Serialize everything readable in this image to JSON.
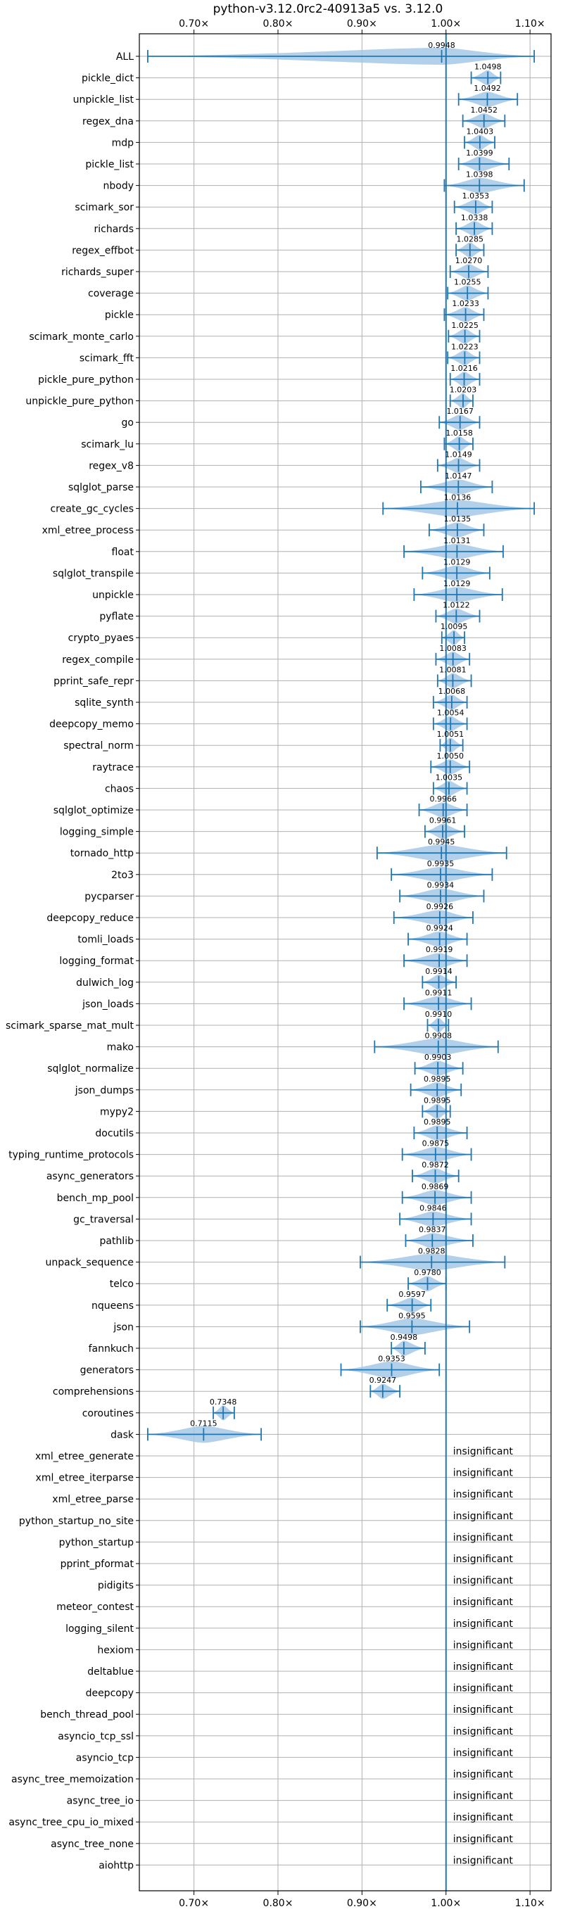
{
  "chart_data": {
    "type": "violin",
    "title": "python-v3.12.0rc2-40913a5 vs. 3.12.0",
    "xlim": [
      0.635,
      1.125
    ],
    "xticks": [
      0.7,
      0.8,
      0.9,
      1.0,
      1.1
    ],
    "xtick_labels": [
      "0.70×",
      "0.80×",
      "0.90×",
      "1.00×",
      "1.10×"
    ],
    "reference_line": 1.0,
    "grid": true,
    "colors": {
      "accent": "#1f77b4",
      "violin_fill": "#a6c8e6",
      "grid": "#b0b0b0"
    },
    "insignificant_label": "insignificant",
    "rows": [
      {
        "name": "ALL",
        "value": 0.9948,
        "label": "0.9948",
        "lo": 0.645,
        "hi": 1.105,
        "width": 1.0
      },
      {
        "name": "pickle_dict",
        "value": 1.0498,
        "label": "1.0498",
        "lo": 1.03,
        "hi": 1.065,
        "width": 0.9
      },
      {
        "name": "unpickle_list",
        "value": 1.0492,
        "label": "1.0492",
        "lo": 1.015,
        "hi": 1.085,
        "width": 0.9
      },
      {
        "name": "regex_dna",
        "value": 1.0452,
        "label": "1.0452",
        "lo": 1.02,
        "hi": 1.07,
        "width": 0.9
      },
      {
        "name": "mdp",
        "value": 1.0403,
        "label": "1.0403",
        "lo": 1.022,
        "hi": 1.058,
        "width": 0.9
      },
      {
        "name": "pickle_list",
        "value": 1.0399,
        "label": "1.0399",
        "lo": 1.015,
        "hi": 1.075,
        "width": 0.9
      },
      {
        "name": "nbody",
        "value": 1.0398,
        "label": "1.0398",
        "lo": 0.998,
        "hi": 1.093,
        "width": 0.9
      },
      {
        "name": "scimark_sor",
        "value": 1.0353,
        "label": "1.0353",
        "lo": 1.01,
        "hi": 1.055,
        "width": 0.9
      },
      {
        "name": "richards",
        "value": 1.0338,
        "label": "1.0338",
        "lo": 1.012,
        "hi": 1.055,
        "width": 0.9
      },
      {
        "name": "regex_effbot",
        "value": 1.0285,
        "label": "1.0285",
        "lo": 1.012,
        "hi": 1.045,
        "width": 0.9
      },
      {
        "name": "richards_super",
        "value": 1.027,
        "label": "1.0270",
        "lo": 1.005,
        "hi": 1.05,
        "width": 0.9
      },
      {
        "name": "coverage",
        "value": 1.0255,
        "label": "1.0255",
        "lo": 1.002,
        "hi": 1.05,
        "width": 0.9
      },
      {
        "name": "pickle",
        "value": 1.0233,
        "label": "1.0233",
        "lo": 0.998,
        "hi": 1.045,
        "width": 0.9
      },
      {
        "name": "scimark_monte_carlo",
        "value": 1.0225,
        "label": "1.0225",
        "lo": 1.003,
        "hi": 1.04,
        "width": 0.9
      },
      {
        "name": "scimark_fft",
        "value": 1.0223,
        "label": "1.0223",
        "lo": 1.002,
        "hi": 1.04,
        "width": 0.9
      },
      {
        "name": "pickle_pure_python",
        "value": 1.0216,
        "label": "1.0216",
        "lo": 1.005,
        "hi": 1.04,
        "width": 0.9
      },
      {
        "name": "unpickle_pure_python",
        "value": 1.0203,
        "label": "1.0203",
        "lo": 1.005,
        "hi": 1.032,
        "width": 0.9
      },
      {
        "name": "go",
        "value": 1.0167,
        "label": "1.0167",
        "lo": 0.992,
        "hi": 1.04,
        "width": 0.9
      },
      {
        "name": "scimark_lu",
        "value": 1.0158,
        "label": "1.0158",
        "lo": 0.998,
        "hi": 1.032,
        "width": 0.9
      },
      {
        "name": "regex_v8",
        "value": 1.0149,
        "label": "1.0149",
        "lo": 0.99,
        "hi": 1.04,
        "width": 0.9
      },
      {
        "name": "sqlglot_parse",
        "value": 1.0147,
        "label": "1.0147",
        "lo": 0.97,
        "hi": 1.055,
        "width": 0.9
      },
      {
        "name": "create_gc_cycles",
        "value": 1.0136,
        "label": "1.0136",
        "lo": 0.925,
        "hi": 1.105,
        "width": 1.0
      },
      {
        "name": "xml_etree_process",
        "value": 1.0135,
        "label": "1.0135",
        "lo": 0.98,
        "hi": 1.045,
        "width": 0.9
      },
      {
        "name": "float",
        "value": 1.0131,
        "label": "1.0131",
        "lo": 0.95,
        "hi": 1.068,
        "width": 0.9
      },
      {
        "name": "sqlglot_transpile",
        "value": 1.0129,
        "label": "1.0129",
        "lo": 0.972,
        "hi": 1.052,
        "width": 0.9
      },
      {
        "name": "unpickle",
        "value": 1.0129,
        "label": "1.0129",
        "lo": 0.962,
        "hi": 1.067,
        "width": 0.9
      },
      {
        "name": "pyflate",
        "value": 1.0122,
        "label": "1.0122",
        "lo": 0.988,
        "hi": 1.04,
        "width": 0.9
      },
      {
        "name": "crypto_pyaes",
        "value": 1.0095,
        "label": "1.0095",
        "lo": 0.995,
        "hi": 1.022,
        "width": 0.9
      },
      {
        "name": "regex_compile",
        "value": 1.0083,
        "label": "1.0083",
        "lo": 0.988,
        "hi": 1.028,
        "width": 0.9
      },
      {
        "name": "pprint_safe_repr",
        "value": 1.0081,
        "label": "1.0081",
        "lo": 0.99,
        "hi": 1.03,
        "width": 0.9
      },
      {
        "name": "sqlite_synth",
        "value": 1.0068,
        "label": "1.0068",
        "lo": 0.985,
        "hi": 1.025,
        "width": 0.9
      },
      {
        "name": "deepcopy_memo",
        "value": 1.0054,
        "label": "1.0054",
        "lo": 0.985,
        "hi": 1.025,
        "width": 0.9
      },
      {
        "name": "spectral_norm",
        "value": 1.0051,
        "label": "1.0051",
        "lo": 0.993,
        "hi": 1.02,
        "width": 0.9
      },
      {
        "name": "raytrace",
        "value": 1.005,
        "label": "1.0050",
        "lo": 0.982,
        "hi": 1.028,
        "width": 0.9
      },
      {
        "name": "chaos",
        "value": 1.0035,
        "label": "1.0035",
        "lo": 0.985,
        "hi": 1.025,
        "width": 0.9
      },
      {
        "name": "sqlglot_optimize",
        "value": 0.9966,
        "label": "0.9966",
        "lo": 0.968,
        "hi": 1.025,
        "width": 0.9
      },
      {
        "name": "logging_simple",
        "value": 0.9961,
        "label": "0.9961",
        "lo": 0.975,
        "hi": 1.022,
        "width": 0.9
      },
      {
        "name": "tornado_http",
        "value": 0.9945,
        "label": "0.9945",
        "lo": 0.918,
        "hi": 1.072,
        "width": 1.0
      },
      {
        "name": "2to3",
        "value": 0.9935,
        "label": "0.9935",
        "lo": 0.935,
        "hi": 1.055,
        "width": 0.9
      },
      {
        "name": "pycparser",
        "value": 0.9934,
        "label": "0.9934",
        "lo": 0.945,
        "hi": 1.045,
        "width": 0.9
      },
      {
        "name": "deepcopy_reduce",
        "value": 0.9926,
        "label": "0.9926",
        "lo": 0.938,
        "hi": 1.032,
        "width": 0.9
      },
      {
        "name": "tomli_loads",
        "value": 0.9924,
        "label": "0.9924",
        "lo": 0.955,
        "hi": 1.025,
        "width": 0.9
      },
      {
        "name": "logging_format",
        "value": 0.9919,
        "label": "0.9919",
        "lo": 0.95,
        "hi": 1.025,
        "width": 0.9
      },
      {
        "name": "dulwich_log",
        "value": 0.9914,
        "label": "0.9914",
        "lo": 0.972,
        "hi": 1.012,
        "width": 0.9
      },
      {
        "name": "json_loads",
        "value": 0.9911,
        "label": "0.9911",
        "lo": 0.95,
        "hi": 1.03,
        "width": 0.9
      },
      {
        "name": "scimark_sparse_mat_mult",
        "value": 0.991,
        "label": "0.9910",
        "lo": 0.978,
        "hi": 1.003,
        "width": 0.9
      },
      {
        "name": "mako",
        "value": 0.9908,
        "label": "0.9908",
        "lo": 0.915,
        "hi": 1.062,
        "width": 1.0
      },
      {
        "name": "sqlglot_normalize",
        "value": 0.9903,
        "label": "0.9903",
        "lo": 0.963,
        "hi": 1.02,
        "width": 0.9
      },
      {
        "name": "json_dumps",
        "value": 0.9895,
        "label": "0.9895",
        "lo": 0.958,
        "hi": 1.018,
        "width": 0.9
      },
      {
        "name": "mypy2",
        "value": 0.9895,
        "label": "0.9895",
        "lo": 0.972,
        "hi": 1.005,
        "width": 0.9
      },
      {
        "name": "docutils",
        "value": 0.9895,
        "label": "0.9895",
        "lo": 0.962,
        "hi": 1.025,
        "width": 0.9
      },
      {
        "name": "typing_runtime_protocols",
        "value": 0.9875,
        "label": "0.9875",
        "lo": 0.948,
        "hi": 1.03,
        "width": 0.9
      },
      {
        "name": "async_generators",
        "value": 0.9872,
        "label": "0.9872",
        "lo": 0.96,
        "hi": 1.015,
        "width": 0.9
      },
      {
        "name": "bench_mp_pool",
        "value": 0.9869,
        "label": "0.9869",
        "lo": 0.948,
        "hi": 1.03,
        "width": 0.9
      },
      {
        "name": "gc_traversal",
        "value": 0.9846,
        "label": "0.9846",
        "lo": 0.945,
        "hi": 1.03,
        "width": 0.9
      },
      {
        "name": "pathlib",
        "value": 0.9837,
        "label": "0.9837",
        "lo": 0.952,
        "hi": 1.032,
        "width": 0.9
      },
      {
        "name": "unpack_sequence",
        "value": 0.9828,
        "label": "0.9828",
        "lo": 0.898,
        "hi": 1.07,
        "width": 1.0
      },
      {
        "name": "telco",
        "value": 0.978,
        "label": "0.9780",
        "lo": 0.955,
        "hi": 1.0,
        "width": 0.9
      },
      {
        "name": "nqueens",
        "value": 0.9597,
        "label": "0.9597",
        "lo": 0.93,
        "hi": 0.982,
        "width": 0.9
      },
      {
        "name": "json",
        "value": 0.9595,
        "label": "0.9595",
        "lo": 0.898,
        "hi": 1.028,
        "width": 1.0
      },
      {
        "name": "fannkuch",
        "value": 0.9498,
        "label": "0.9498",
        "lo": 0.935,
        "hi": 0.975,
        "width": 0.9
      },
      {
        "name": "generators",
        "value": 0.9353,
        "label": "0.9353",
        "lo": 0.875,
        "hi": 0.992,
        "width": 1.0
      },
      {
        "name": "comprehensions",
        "value": 0.9247,
        "label": "0.9247",
        "lo": 0.91,
        "hi": 0.945,
        "width": 0.9
      },
      {
        "name": "coroutines",
        "value": 0.7348,
        "label": "0.7348",
        "lo": 0.723,
        "hi": 0.748,
        "width": 0.9
      },
      {
        "name": "dask",
        "value": 0.7115,
        "label": "0.7115",
        "lo": 0.645,
        "hi": 0.78,
        "width": 1.0
      },
      {
        "name": "xml_etree_generate",
        "insignificant": true
      },
      {
        "name": "xml_etree_iterparse",
        "insignificant": true
      },
      {
        "name": "xml_etree_parse",
        "insignificant": true
      },
      {
        "name": "python_startup_no_site",
        "insignificant": true
      },
      {
        "name": "python_startup",
        "insignificant": true
      },
      {
        "name": "pprint_pformat",
        "insignificant": true
      },
      {
        "name": "pidigits",
        "insignificant": true
      },
      {
        "name": "meteor_contest",
        "insignificant": true
      },
      {
        "name": "logging_silent",
        "insignificant": true
      },
      {
        "name": "hexiom",
        "insignificant": true
      },
      {
        "name": "deltablue",
        "insignificant": true
      },
      {
        "name": "deepcopy",
        "insignificant": true
      },
      {
        "name": "bench_thread_pool",
        "insignificant": true
      },
      {
        "name": "asyncio_tcp_ssl",
        "insignificant": true
      },
      {
        "name": "asyncio_tcp",
        "insignificant": true
      },
      {
        "name": "async_tree_memoization",
        "insignificant": true
      },
      {
        "name": "async_tree_io",
        "insignificant": true
      },
      {
        "name": "async_tree_cpu_io_mixed",
        "insignificant": true
      },
      {
        "name": "async_tree_none",
        "insignificant": true
      },
      {
        "name": "aiohttp",
        "insignificant": true
      }
    ]
  }
}
